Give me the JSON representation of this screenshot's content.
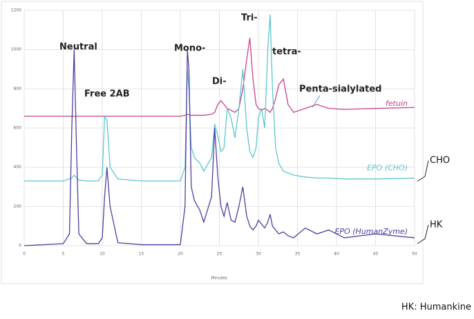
{
  "chart_data": {
    "type": "line",
    "x_label": "Minutes",
    "x": [
      0,
      5,
      5.8,
      6.1,
      6.4,
      6.7,
      7,
      8,
      9.5,
      10,
      10.3,
      10.6,
      11,
      12,
      15,
      20,
      20.6,
      20.9,
      21.1,
      21.4,
      21.8,
      22.5,
      23,
      24,
      24.4,
      24.8,
      25.2,
      25.6,
      26,
      26.5,
      27,
      27.5,
      28,
      28.5,
      28.9,
      29.3,
      29.7,
      30,
      30.4,
      30.8,
      31.2,
      31.5,
      31.8,
      32.2,
      32.6,
      33.2,
      33.8,
      34.5,
      36,
      37.5,
      39,
      41,
      45,
      50
    ],
    "series": [
      {
        "name": "fetuin",
        "color": "#c8408a",
        "values": [
          660,
          660,
          660,
          660,
          660,
          660,
          660,
          660,
          660,
          660,
          660,
          660,
          660,
          660,
          660,
          660,
          665,
          670,
          668,
          665,
          665,
          665,
          665,
          670,
          680,
          720,
          740,
          720,
          700,
          690,
          680,
          700,
          800,
          950,
          1060,
          850,
          720,
          700,
          690,
          700,
          690,
          680,
          700,
          750,
          820,
          850,
          720,
          680,
          700,
          720,
          700,
          695,
          700,
          705
        ]
      },
      {
        "name": "EPO (CHO)",
        "color": "#5cc6d0",
        "values": [
          330,
          330,
          340,
          345,
          360,
          345,
          335,
          330,
          330,
          360,
          660,
          640,
          400,
          340,
          330,
          330,
          400,
          900,
          800,
          500,
          450,
          420,
          380,
          450,
          620,
          560,
          480,
          500,
          700,
          650,
          550,
          700,
          900,
          600,
          480,
          450,
          500,
          650,
          700,
          600,
          1000,
          1180,
          800,
          500,
          420,
          380,
          370,
          360,
          350,
          345,
          345,
          340,
          340,
          345
        ]
      },
      {
        "name": "EPO (HumanZyme)",
        "color": "#4b3fa0",
        "values": [
          0,
          10,
          60,
          600,
          1000,
          500,
          60,
          10,
          10,
          40,
          250,
          400,
          200,
          15,
          5,
          5,
          200,
          1000,
          900,
          300,
          230,
          180,
          120,
          250,
          600,
          350,
          200,
          150,
          220,
          130,
          120,
          200,
          300,
          150,
          100,
          80,
          100,
          130,
          110,
          90,
          120,
          160,
          100,
          80,
          60,
          70,
          50,
          40,
          90,
          60,
          80,
          40,
          60,
          40
        ]
      }
    ],
    "annotations": [
      "Neutral",
      "Free 2AB",
      "Mono-",
      "Di-",
      "Tri-",
      "tetra-",
      "Penta-sialylated"
    ],
    "side_labels": [
      "CHO",
      "HK"
    ],
    "footnote": "HK: Humankine",
    "xlim": [
      0,
      50
    ],
    "xticks": [
      0,
      5,
      10,
      15,
      20,
      25,
      30,
      35,
      40,
      45,
      50
    ],
    "ylim": [
      0,
      1200
    ],
    "yticks": [
      0,
      200,
      400,
      600,
      800,
      1000,
      1200
    ],
    "grid": true
  }
}
